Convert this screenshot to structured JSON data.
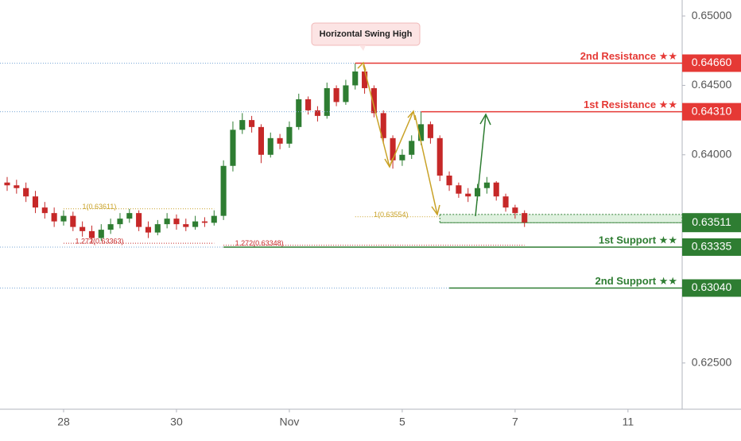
{
  "chart_data": {
    "type": "candlestick",
    "x": [
      0,
      1,
      2,
      3,
      4,
      5,
      6,
      7,
      8,
      9,
      10,
      11,
      12,
      13,
      14,
      15,
      16,
      17,
      18,
      19,
      20,
      21,
      22,
      23,
      24,
      25,
      26,
      27,
      28,
      29,
      30,
      31,
      32,
      33,
      34,
      35,
      36,
      37,
      38,
      39,
      40,
      41,
      42,
      43,
      44,
      45,
      46,
      47,
      48,
      49,
      50,
      51,
      52,
      53,
      54,
      55
    ],
    "open": [
      0.638,
      0.6378,
      0.6376,
      0.637,
      0.6362,
      0.6358,
      0.6352,
      0.6356,
      0.6348,
      0.6345,
      0.634,
      0.6346,
      0.635,
      0.6354,
      0.6358,
      0.6348,
      0.6344,
      0.635,
      0.6354,
      0.635,
      0.6348,
      0.6352,
      0.6351,
      0.6356,
      0.6392,
      0.6418,
      0.6425,
      0.642,
      0.64,
      0.6412,
      0.6408,
      0.642,
      0.644,
      0.6432,
      0.6428,
      0.6448,
      0.6438,
      0.645,
      0.646,
      0.6448,
      0.643,
      0.6412,
      0.6396,
      0.64,
      0.641,
      0.6422,
      0.6412,
      0.6385,
      0.6378,
      0.6372,
      0.637,
      0.6376,
      0.638,
      0.637,
      0.6362,
      0.6358
    ],
    "high": [
      0.6384,
      0.6382,
      0.638,
      0.6374,
      0.6366,
      0.6362,
      0.636,
      0.6359,
      0.6352,
      0.6349,
      0.635,
      0.6354,
      0.6358,
      0.6361,
      0.636,
      0.6352,
      0.6353,
      0.6358,
      0.6357,
      0.6354,
      0.6356,
      0.6355,
      0.636,
      0.6396,
      0.6424,
      0.643,
      0.6428,
      0.6422,
      0.6416,
      0.6415,
      0.6424,
      0.6444,
      0.6442,
      0.6435,
      0.6452,
      0.645,
      0.6454,
      0.6466,
      0.6463,
      0.645,
      0.6432,
      0.6414,
      0.6404,
      0.6414,
      0.6431,
      0.6424,
      0.6414,
      0.6388,
      0.638,
      0.6376,
      0.6379,
      0.6384,
      0.6381,
      0.6372,
      0.6364,
      0.636
    ],
    "low": [
      0.6374,
      0.6372,
      0.6366,
      0.6358,
      0.6354,
      0.6348,
      0.6349,
      0.6345,
      0.6341,
      0.63363,
      0.6338,
      0.6343,
      0.6347,
      0.6351,
      0.6345,
      0.634,
      0.6342,
      0.6347,
      0.6346,
      0.6345,
      0.6346,
      0.6348,
      0.6349,
      0.6353,
      0.6388,
      0.6415,
      0.6416,
      0.6394,
      0.6398,
      0.6404,
      0.6405,
      0.6418,
      0.6429,
      0.6424,
      0.6426,
      0.6435,
      0.6436,
      0.6447,
      0.6444,
      0.6427,
      0.6408,
      0.639,
      0.6392,
      0.6397,
      0.6407,
      0.6408,
      0.6381,
      0.6374,
      0.6369,
      0.6366,
      0.6367,
      0.6372,
      0.6367,
      0.6359,
      0.6354,
      0.6348
    ],
    "close": [
      0.6378,
      0.6376,
      0.637,
      0.6362,
      0.6358,
      0.6352,
      0.6356,
      0.6348,
      0.6345,
      0.634,
      0.6346,
      0.635,
      0.6354,
      0.6358,
      0.6348,
      0.6344,
      0.635,
      0.6354,
      0.635,
      0.6348,
      0.6352,
      0.6351,
      0.6356,
      0.6392,
      0.6418,
      0.6425,
      0.642,
      0.64,
      0.6412,
      0.6408,
      0.642,
      0.644,
      0.6432,
      0.6428,
      0.6448,
      0.6438,
      0.645,
      0.646,
      0.6448,
      0.643,
      0.6412,
      0.6396,
      0.64,
      0.641,
      0.6422,
      0.6412,
      0.6385,
      0.6378,
      0.6372,
      0.637,
      0.6376,
      0.638,
      0.637,
      0.6362,
      0.6358,
      0.6351
    ],
    "up_color": "#2e7d32",
    "down_color": "#c62828",
    "xlim": [
      -0.76,
      71.76
    ],
    "xticks": [
      {
        "value": 6,
        "label": "28"
      },
      {
        "value": 18,
        "label": "30"
      },
      {
        "value": 30,
        "label": "Nov"
      },
      {
        "value": 42,
        "label": "5"
      },
      {
        "value": 54,
        "label": "7"
      },
      {
        "value": 66,
        "label": "11"
      }
    ],
    "ylim": [
      0.62167,
      0.65115
    ],
    "yticks": [
      {
        "value": 0.625,
        "label": "0.62500"
      },
      {
        "value": 0.64,
        "label": "0.64000"
      },
      {
        "value": 0.645,
        "label": "0.64500"
      },
      {
        "value": 0.65,
        "label": "0.65000"
      }
    ],
    "levels": [
      {
        "name": "2nd Resistance ★★",
        "price": {
          "value": 0.6466,
          "label": "0.64660"
        },
        "color": "#e53935",
        "from": 37
      },
      {
        "name": "1st Resistance ★★",
        "price": {
          "value": 0.6431,
          "label": "0.64310"
        },
        "color": "#e53935",
        "from": 44
      },
      {
        "name": "1st Support ★★",
        "price": {
          "value": 0.63335,
          "label": "0.63335"
        },
        "color": "#2e7d32",
        "from": 23
      },
      {
        "name": "2nd Support ★★",
        "price": {
          "value": 0.6304,
          "label": "0.63040"
        },
        "color": "#2e7d32",
        "from": 47
      }
    ],
    "last_price": {
      "value": 0.63511,
      "label": "0.63511"
    },
    "zone": {
      "top": 0.6357,
      "bottom": 0.63511,
      "from": 46
    },
    "fibs": [
      {
        "label": "1(0.63611)",
        "price": 0.63611,
        "from": 6,
        "to": 22,
        "color": "#c9a227"
      },
      {
        "label": "1.272(0.63363)",
        "price": 0.63363,
        "from": 6,
        "to": 22,
        "color": "#c62828"
      },
      {
        "label": "1(0.63554)",
        "price": 0.63554,
        "from": 37,
        "to": 46,
        "color": "#c9a227"
      },
      {
        "label": "1.272(0.63348)",
        "price": 0.63348,
        "from": 23,
        "to": 55,
        "color": "#c62828"
      }
    ],
    "annotation": "Horizontal Swing High"
  }
}
